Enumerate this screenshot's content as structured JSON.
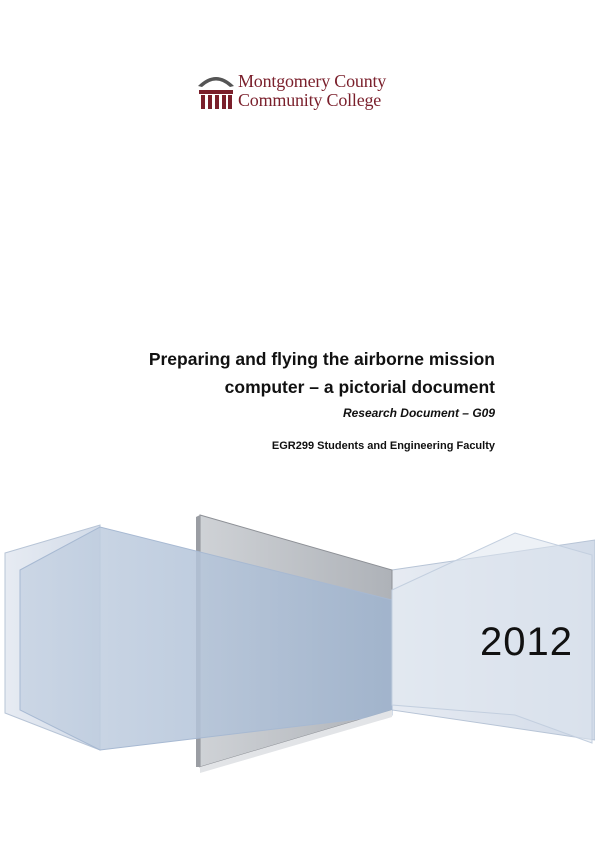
{
  "logo": {
    "line1": "Montgomery County",
    "line2": "Community College"
  },
  "title": {
    "line1": "Preparing and flying the airborne mission",
    "line2": "computer – a pictorial document"
  },
  "subtitle": "Research Document – G09",
  "authors": "EGR299 Students and Engineering Faculty",
  "year": "2012",
  "colors": {
    "brand": "#7a1f2b",
    "panel_blue": "#8fa9c9",
    "panel_gray": "#b9bcc2"
  }
}
